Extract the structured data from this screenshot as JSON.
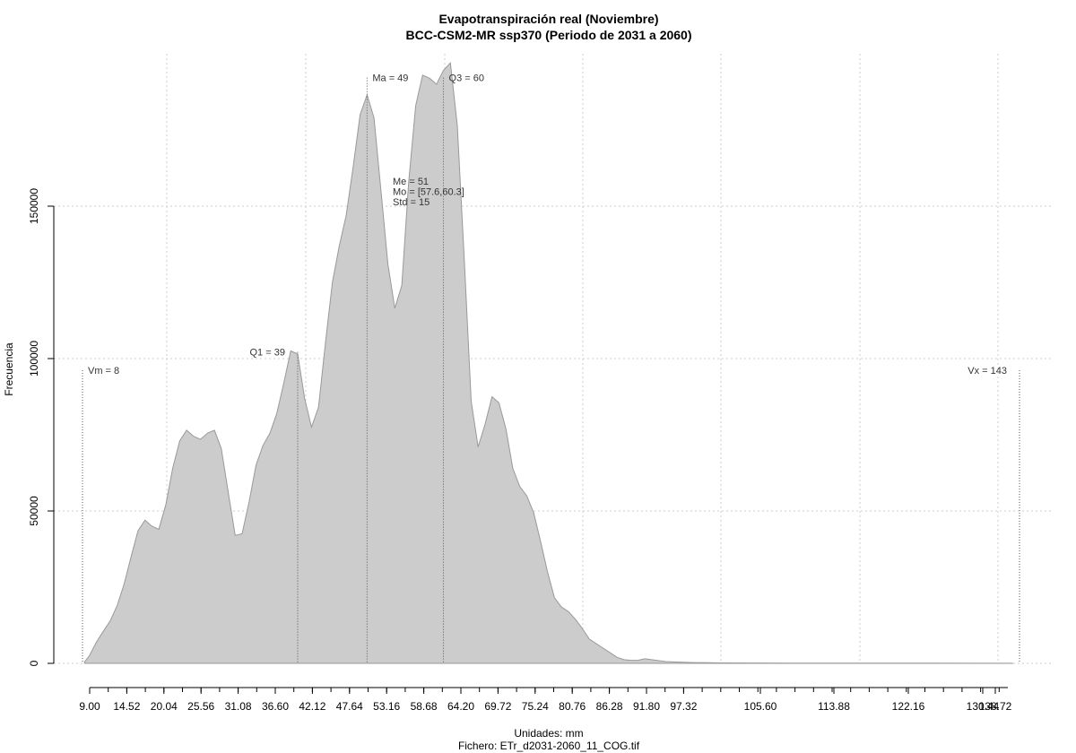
{
  "chart_data": {
    "type": "area",
    "title": "Evapotranspiración real (Noviembre)",
    "subtitle": "BCC-CSM2-MR ssp370 (Periodo de 2031 a 2060)",
    "xlabel": "Unidades: mm",
    "ylabel": "Frecuencia",
    "footer": "Fichero: ETr_d2031-2060_11_COG.tif",
    "xlim": [
      8,
      143
    ],
    "ylim": [
      0,
      200000
    ],
    "grid": true,
    "fill_color": "#cccccc",
    "line_color": "#999999",
    "x_ticks": [
      "9.00",
      "14.52",
      "20.04",
      "25.56",
      "31.08",
      "36.60",
      "42.12",
      "47.64",
      "53.16",
      "58.68",
      "64.20",
      "69.72",
      "75.24",
      "80.76",
      "86.28",
      "91.80",
      "97.32",
      "105.60",
      "113.88",
      "122.16",
      "130.44",
      "138.72"
    ],
    "y_ticks": [
      "0",
      "50000",
      "100000",
      "150000"
    ],
    "series": [
      {
        "x": [
          8.3,
          9.0,
          10.0,
          11.0,
          12.0,
          13.0,
          14.0,
          15.0,
          16.0,
          17.0,
          18.0,
          19.0,
          20.0,
          21.0,
          22.0,
          23.0,
          24.0,
          25.0,
          26.0,
          27.0,
          28.0,
          29.0,
          30.0,
          31.0,
          32.0,
          33.0,
          34.0,
          35.0,
          36.0,
          37.0,
          38.0,
          39.0,
          40.0,
          41.0,
          42.0,
          43.0,
          44.0,
          45.0,
          46.0,
          47.0,
          48.0,
          49.0,
          50.0,
          51.0,
          52.0,
          53.0,
          54.0,
          55.0,
          56.0,
          57.0,
          58.0,
          59.0,
          60.0,
          61.0,
          62.0,
          63.0,
          64.0,
          65.0,
          66.0,
          67.0,
          68.0,
          69.0,
          70.0,
          71.0,
          72.0,
          73.0,
          74.0,
          75.0,
          76.0,
          77.0,
          78.0,
          79.0,
          80.0,
          81.0,
          82.0,
          83.0,
          84.0,
          85.0,
          86.0,
          87.0,
          88.0,
          89.0,
          90.0,
          92.0,
          94.0,
          96.0,
          98.0,
          100.0,
          110.0,
          120.0,
          130.0,
          140.0,
          142.0
        ],
        "values": [
          500,
          2500,
          7000,
          10500,
          14000,
          19000,
          26000,
          35000,
          43500,
          47000,
          45000,
          44000,
          52000,
          64000,
          73000,
          76500,
          74500,
          73500,
          75500,
          76500,
          70500,
          56000,
          42000,
          42500,
          53000,
          65000,
          71500,
          75500,
          82000,
          92000,
          102500,
          101500,
          87000,
          77500,
          84000,
          105000,
          125000,
          137000,
          147000,
          163000,
          180000,
          186500,
          179000,
          155000,
          131000,
          116500,
          124000,
          158000,
          183000,
          193000,
          192000,
          190000,
          194500,
          197000,
          176500,
          133000,
          86000,
          71000,
          78500,
          87500,
          85500,
          77000,
          64000,
          58000,
          55000,
          49500,
          40000,
          30000,
          21500,
          18500,
          17000,
          14500,
          11500,
          8000,
          6500,
          5000,
          3500,
          2000,
          1200,
          1000,
          1000,
          1500,
          1200,
          600,
          400,
          250,
          200,
          150,
          100,
          80,
          60,
          40,
          20
        ]
      }
    ],
    "annotations": [
      {
        "label": "Vm = 8",
        "x": 8,
        "y": 95000
      },
      {
        "label": "Q1 = 39",
        "x": 39,
        "y": 101000
      },
      {
        "label": "Ma = 49",
        "x": 49,
        "y": 191000
      },
      {
        "label": "Q3 = 60",
        "x": 60,
        "y": 191000
      },
      {
        "label": "Vx = 143",
        "x": 143,
        "y": 95000
      }
    ],
    "stats": [
      "Me = 51",
      "Mo = [57.6,60.3]",
      "Std = 15"
    ]
  }
}
